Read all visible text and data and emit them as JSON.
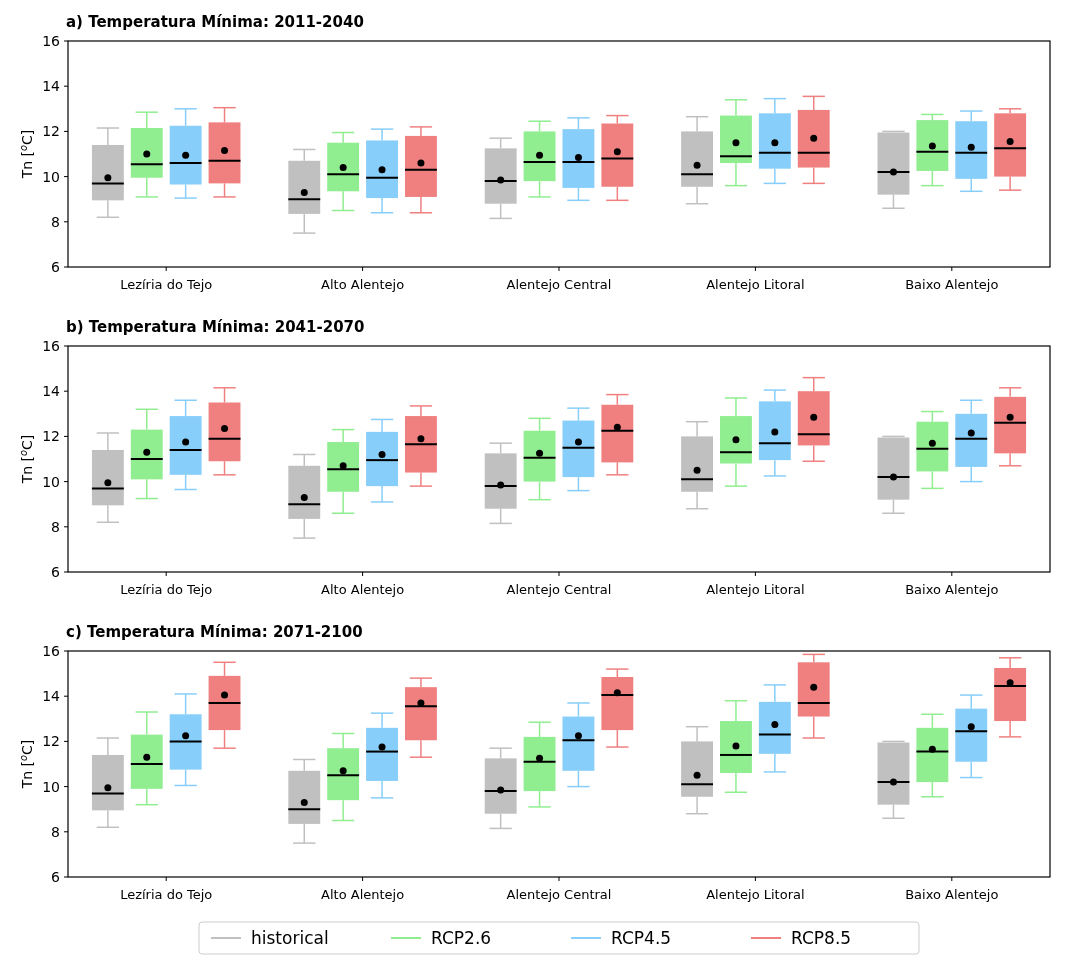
{
  "chart_data": [
    {
      "type": "box",
      "title": "a) Temperatura Mínima: 2011-2040",
      "ylabel": "Tn [$^{o}$C]",
      "categories": [
        "Lezíria do Tejo",
        "Alto Alentejo",
        "Alentejo Central",
        "Alentejo Litoral",
        "Baixo Alentejo"
      ],
      "ylim": [
        6,
        16
      ],
      "yticks": [
        6,
        8,
        10,
        12,
        14,
        16
      ],
      "series": [
        {
          "color": "#c0c0c0",
          "boxes": [
            {
              "low": 8.2,
              "q1": 8.95,
              "median": 9.7,
              "q3": 11.4,
              "high": 12.15,
              "mean": 9.95
            },
            {
              "low": 7.5,
              "q1": 8.35,
              "median": 9.0,
              "q3": 10.7,
              "high": 11.2,
              "mean": 9.3
            },
            {
              "low": 8.15,
              "q1": 8.8,
              "median": 9.8,
              "q3": 11.25,
              "high": 11.7,
              "mean": 9.85
            },
            {
              "low": 8.8,
              "q1": 9.55,
              "median": 10.1,
              "q3": 12.0,
              "high": 12.65,
              "mean": 10.5
            },
            {
              "low": 8.6,
              "q1": 9.2,
              "median": 10.2,
              "q3": 11.95,
              "high": 12.0,
              "mean": 10.2
            }
          ]
        },
        {
          "color": "#90ee90",
          "boxes": [
            {
              "low": 9.1,
              "q1": 9.95,
              "median": 10.55,
              "q3": 12.15,
              "high": 12.85,
              "mean": 11.0
            },
            {
              "low": 8.5,
              "q1": 9.35,
              "median": 10.1,
              "q3": 11.5,
              "high": 11.95,
              "mean": 10.4
            },
            {
              "low": 9.1,
              "q1": 9.8,
              "median": 10.65,
              "q3": 12.0,
              "high": 12.45,
              "mean": 10.95
            },
            {
              "low": 9.6,
              "q1": 10.6,
              "median": 10.9,
              "q3": 12.7,
              "high": 13.4,
              "mean": 11.5
            },
            {
              "low": 9.6,
              "q1": 10.25,
              "median": 11.1,
              "q3": 12.5,
              "high": 12.75,
              "mean": 11.35
            }
          ]
        },
        {
          "color": "#87cefa",
          "boxes": [
            {
              "low": 9.05,
              "q1": 9.65,
              "median": 10.6,
              "q3": 12.25,
              "high": 13.0,
              "mean": 10.95
            },
            {
              "low": 8.4,
              "q1": 9.05,
              "median": 9.95,
              "q3": 11.6,
              "high": 12.1,
              "mean": 10.3
            },
            {
              "low": 8.95,
              "q1": 9.5,
              "median": 10.65,
              "q3": 12.1,
              "high": 12.6,
              "mean": 10.85
            },
            {
              "low": 9.7,
              "q1": 10.35,
              "median": 11.05,
              "q3": 12.8,
              "high": 13.45,
              "mean": 11.5
            },
            {
              "low": 9.35,
              "q1": 9.9,
              "median": 11.05,
              "q3": 12.45,
              "high": 12.9,
              "mean": 11.3
            }
          ]
        },
        {
          "color": "#f08080",
          "boxes": [
            {
              "low": 9.1,
              "q1": 9.7,
              "median": 10.7,
              "q3": 12.4,
              "high": 13.05,
              "mean": 11.15
            },
            {
              "low": 8.4,
              "q1": 9.1,
              "median": 10.3,
              "q3": 11.8,
              "high": 12.2,
              "mean": 10.6
            },
            {
              "low": 8.95,
              "q1": 9.55,
              "median": 10.8,
              "q3": 12.35,
              "high": 12.7,
              "mean": 11.1
            },
            {
              "low": 9.7,
              "q1": 10.4,
              "median": 11.05,
              "q3": 12.95,
              "high": 13.55,
              "mean": 11.7
            },
            {
              "low": 9.4,
              "q1": 10.0,
              "median": 11.25,
              "q3": 12.8,
              "high": 13.0,
              "mean": 11.55
            }
          ]
        }
      ]
    },
    {
      "type": "box",
      "title": "b) Temperatura Mínima: 2041-2070",
      "ylabel": "Tn [$^{o}$C]",
      "categories": [
        "Lezíria do Tejo",
        "Alto Alentejo",
        "Alentejo Central",
        "Alentejo Litoral",
        "Baixo Alentejo"
      ],
      "ylim": [
        6,
        16
      ],
      "yticks": [
        6,
        8,
        10,
        12,
        14,
        16
      ],
      "series": [
        {
          "color": "#c0c0c0",
          "boxes": [
            {
              "low": 8.2,
              "q1": 8.95,
              "median": 9.7,
              "q3": 11.4,
              "high": 12.15,
              "mean": 9.95
            },
            {
              "low": 7.5,
              "q1": 8.35,
              "median": 9.0,
              "q3": 10.7,
              "high": 11.2,
              "mean": 9.3
            },
            {
              "low": 8.15,
              "q1": 8.8,
              "median": 9.8,
              "q3": 11.25,
              "high": 11.7,
              "mean": 9.85
            },
            {
              "low": 8.8,
              "q1": 9.55,
              "median": 10.1,
              "q3": 12.0,
              "high": 12.65,
              "mean": 10.5
            },
            {
              "low": 8.6,
              "q1": 9.2,
              "median": 10.2,
              "q3": 11.95,
              "high": 12.0,
              "mean": 10.2
            }
          ]
        },
        {
          "color": "#90ee90",
          "boxes": [
            {
              "low": 9.25,
              "q1": 10.1,
              "median": 11.0,
              "q3": 12.3,
              "high": 13.2,
              "mean": 11.3
            },
            {
              "low": 8.6,
              "q1": 9.55,
              "median": 10.55,
              "q3": 11.75,
              "high": 12.3,
              "mean": 10.7
            },
            {
              "low": 9.2,
              "q1": 10.0,
              "median": 11.05,
              "q3": 12.25,
              "high": 12.8,
              "mean": 11.25
            },
            {
              "low": 9.8,
              "q1": 10.8,
              "median": 11.3,
              "q3": 12.9,
              "high": 13.7,
              "mean": 11.85
            },
            {
              "low": 9.7,
              "q1": 10.45,
              "median": 11.45,
              "q3": 12.65,
              "high": 13.1,
              "mean": 11.7
            }
          ]
        },
        {
          "color": "#87cefa",
          "boxes": [
            {
              "low": 9.65,
              "q1": 10.3,
              "median": 11.4,
              "q3": 12.9,
              "high": 13.6,
              "mean": 11.75
            },
            {
              "low": 9.1,
              "q1": 9.8,
              "median": 10.95,
              "q3": 12.2,
              "high": 12.75,
              "mean": 11.2
            },
            {
              "low": 9.6,
              "q1": 10.2,
              "median": 11.5,
              "q3": 12.7,
              "high": 13.25,
              "mean": 11.75
            },
            {
              "low": 10.25,
              "q1": 10.95,
              "median": 11.7,
              "q3": 13.55,
              "high": 14.05,
              "mean": 12.2
            },
            {
              "low": 10.0,
              "q1": 10.65,
              "median": 11.9,
              "q3": 13.0,
              "high": 13.6,
              "mean": 12.15
            }
          ]
        },
        {
          "color": "#f08080",
          "boxes": [
            {
              "low": 10.3,
              "q1": 10.9,
              "median": 11.9,
              "q3": 13.5,
              "high": 14.15,
              "mean": 12.35
            },
            {
              "low": 9.8,
              "q1": 10.4,
              "median": 11.65,
              "q3": 12.9,
              "high": 13.35,
              "mean": 11.9
            },
            {
              "low": 10.3,
              "q1": 10.85,
              "median": 12.25,
              "q3": 13.4,
              "high": 13.85,
              "mean": 12.4
            },
            {
              "low": 10.9,
              "q1": 11.6,
              "median": 12.1,
              "q3": 14.0,
              "high": 14.6,
              "mean": 12.85
            },
            {
              "low": 10.7,
              "q1": 11.25,
              "median": 12.6,
              "q3": 13.75,
              "high": 14.15,
              "mean": 12.85
            }
          ]
        }
      ]
    },
    {
      "type": "box",
      "title": "c) Temperatura Mínima: 2071-2100",
      "ylabel": "Tn [$^{o}$C]",
      "categories": [
        "Lezíria do Tejo",
        "Alto Alentejo",
        "Alentejo Central",
        "Alentejo Litoral",
        "Baixo Alentejo"
      ],
      "ylim": [
        6,
        16
      ],
      "yticks": [
        6,
        8,
        10,
        12,
        14,
        16
      ],
      "legend": "bottom",
      "series": [
        {
          "name": "historical",
          "color": "#c0c0c0",
          "boxes": [
            {
              "low": 8.2,
              "q1": 8.95,
              "median": 9.7,
              "q3": 11.4,
              "high": 12.15,
              "mean": 9.95
            },
            {
              "low": 7.5,
              "q1": 8.35,
              "median": 9.0,
              "q3": 10.7,
              "high": 11.2,
              "mean": 9.3
            },
            {
              "low": 8.15,
              "q1": 8.8,
              "median": 9.8,
              "q3": 11.25,
              "high": 11.7,
              "mean": 9.85
            },
            {
              "low": 8.8,
              "q1": 9.55,
              "median": 10.1,
              "q3": 12.0,
              "high": 12.65,
              "mean": 10.5
            },
            {
              "low": 8.6,
              "q1": 9.2,
              "median": 10.2,
              "q3": 11.95,
              "high": 12.0,
              "mean": 10.2
            }
          ]
        },
        {
          "name": "RCP2.6",
          "color": "#90ee90",
          "boxes": [
            {
              "low": 9.2,
              "q1": 9.9,
              "median": 11.0,
              "q3": 12.3,
              "high": 13.3,
              "mean": 11.3
            },
            {
              "low": 8.5,
              "q1": 9.4,
              "median": 10.5,
              "q3": 11.7,
              "high": 12.35,
              "mean": 10.7
            },
            {
              "low": 9.1,
              "q1": 9.8,
              "median": 11.1,
              "q3": 12.2,
              "high": 12.85,
              "mean": 11.25
            },
            {
              "low": 9.75,
              "q1": 10.6,
              "median": 11.4,
              "q3": 12.9,
              "high": 13.8,
              "mean": 11.8
            },
            {
              "low": 9.55,
              "q1": 10.2,
              "median": 11.55,
              "q3": 12.6,
              "high": 13.2,
              "mean": 11.65
            }
          ]
        },
        {
          "name": "RCP4.5",
          "color": "#87cefa",
          "boxes": [
            {
              "low": 10.05,
              "q1": 10.75,
              "median": 12.0,
              "q3": 13.2,
              "high": 14.1,
              "mean": 12.25
            },
            {
              "low": 9.5,
              "q1": 10.25,
              "median": 11.55,
              "q3": 12.6,
              "high": 13.25,
              "mean": 11.75
            },
            {
              "low": 10.0,
              "q1": 10.7,
              "median": 12.05,
              "q3": 13.1,
              "high": 13.7,
              "mean": 12.25
            },
            {
              "low": 10.65,
              "q1": 11.45,
              "median": 12.3,
              "q3": 13.75,
              "high": 14.5,
              "mean": 12.75
            },
            {
              "low": 10.4,
              "q1": 11.1,
              "median": 12.45,
              "q3": 13.45,
              "high": 14.05,
              "mean": 12.65
            }
          ]
        },
        {
          "name": "RCP8.5",
          "color": "#f08080",
          "boxes": [
            {
              "low": 11.7,
              "q1": 12.5,
              "median": 13.7,
              "q3": 14.9,
              "high": 15.5,
              "mean": 14.05
            },
            {
              "low": 11.3,
              "q1": 12.05,
              "median": 13.55,
              "q3": 14.4,
              "high": 14.8,
              "mean": 13.7
            },
            {
              "low": 11.75,
              "q1": 12.5,
              "median": 14.05,
              "q3": 14.85,
              "high": 15.2,
              "mean": 14.15
            },
            {
              "low": 12.15,
              "q1": 13.1,
              "median": 13.7,
              "q3": 15.5,
              "high": 15.85,
              "mean": 14.4
            },
            {
              "low": 12.2,
              "q1": 12.9,
              "median": 14.45,
              "q3": 15.25,
              "high": 15.7,
              "mean": 14.6
            }
          ]
        }
      ]
    }
  ]
}
